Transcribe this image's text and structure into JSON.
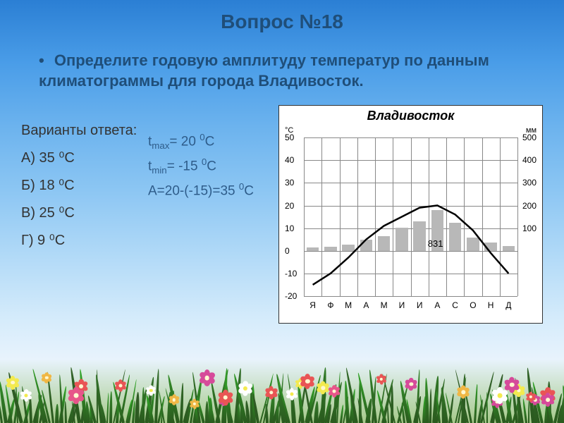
{
  "title": "Вопрос №18",
  "question": "Определите годовую амплитуду температур по данным климатограммы для города Владивосток.",
  "answers_label": "Варианты ответа:",
  "answers": {
    "a": "А) 35 ⁰С",
    "b": "Б) 18 ⁰С",
    "c": "В) 25 ⁰С",
    "d": "Г) 9 ⁰С"
  },
  "calculations": {
    "tmax": "tmax= 20 ⁰С",
    "tmin": "tmin= -15 ⁰С",
    "amplitude": "А=20-(-15)=35 ⁰С"
  },
  "chart": {
    "title": "Владивосток",
    "type": "climograph",
    "temp_unit": "°C",
    "precip_unit": "мм",
    "annual_precip": "831",
    "months": [
      "Я",
      "Ф",
      "М",
      "А",
      "М",
      "И",
      "И",
      "А",
      "С",
      "О",
      "Н",
      "Д"
    ],
    "temp_values": [
      -15,
      -10,
      -3,
      5,
      11,
      15,
      19,
      20,
      16,
      9,
      -1,
      -10
    ],
    "precip_values": [
      15,
      18,
      28,
      50,
      65,
      102,
      130,
      180,
      125,
      60,
      38,
      20
    ],
    "temp_axis": {
      "min": -20,
      "max": 50,
      "ticks": [
        -20,
        -10,
        0,
        10,
        20,
        30,
        40,
        50
      ]
    },
    "precip_axis": {
      "min": 0,
      "max": 500,
      "ticks": [
        0,
        100,
        200,
        300,
        400,
        500
      ]
    },
    "colors": {
      "bar_fill": "#b8b8b8",
      "line_color": "#000000",
      "grid_color": "#888888",
      "background": "#ffffff"
    }
  },
  "styling": {
    "title_color": "#1f4e79",
    "text_color": "#333333",
    "calc_color": "#2e5c8a"
  }
}
